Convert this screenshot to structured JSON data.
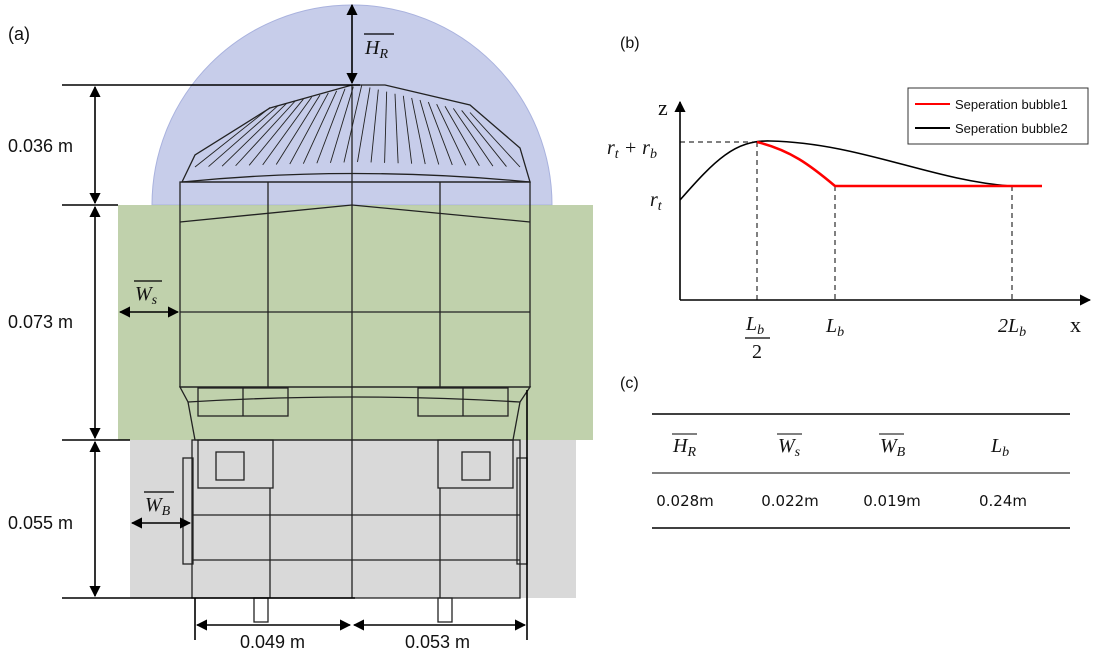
{
  "panel_a": {
    "label": "(a)",
    "dimensions": {
      "roof_height": "0.036 m",
      "body_height": "0.073 m",
      "bogie_height": "0.055 m",
      "left_width": "0.049 m",
      "right_width": "0.053 m"
    },
    "symbols": {
      "h_r": {
        "base": "H",
        "sub": "R"
      },
      "w_s": {
        "base": "W",
        "sub": "s"
      },
      "w_b": {
        "base": "W",
        "sub": "B"
      }
    }
  },
  "panel_b": {
    "label": "(b)",
    "axes": {
      "z": "z",
      "x": "x"
    },
    "legend": [
      {
        "name": "Seperation bubble1",
        "color": "#ff0000"
      },
      {
        "name": "Seperation bubble2",
        "color": "#000000"
      }
    ],
    "z_labels": {
      "top": [
        "r",
        "t",
        " + r",
        "b"
      ],
      "base": [
        "r",
        "t"
      ]
    },
    "x_labels": {
      "half": {
        "numerator": [
          "L",
          "b"
        ],
        "denominator": "2"
      },
      "full": [
        "L",
        "b"
      ],
      "double": [
        "2L",
        "b"
      ]
    }
  },
  "panel_c": {
    "label": "(c)",
    "table": {
      "header": [
        [
          "H",
          "R"
        ],
        [
          "W",
          "s"
        ],
        [
          "W",
          "B"
        ],
        [
          "L",
          "b"
        ]
      ],
      "rows": [
        [
          "0.028m",
          "0.022m",
          "0.019m",
          "0.24m"
        ]
      ]
    }
  }
}
